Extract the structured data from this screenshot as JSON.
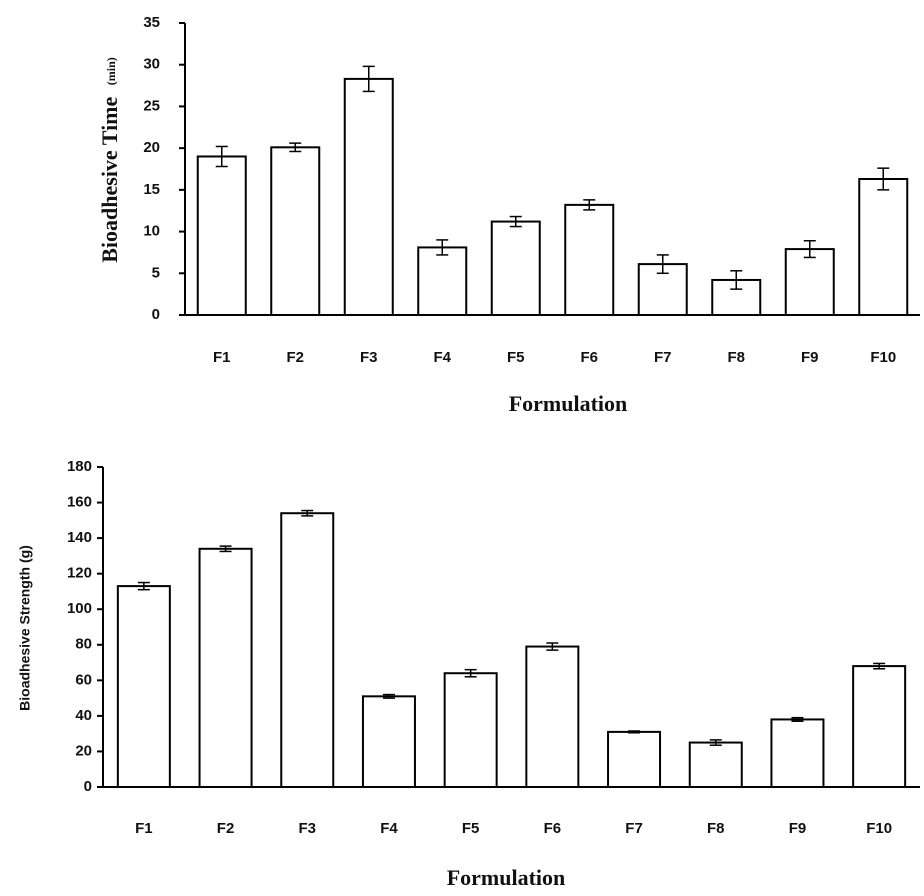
{
  "chart_data": [
    {
      "type": "bar",
      "categories": [
        "F1",
        "F2",
        "F3",
        "F4",
        "F5",
        "F6",
        "F7",
        "F8",
        "F9",
        "F10"
      ],
      "values": [
        19.0,
        20.1,
        28.3,
        8.1,
        11.2,
        13.2,
        6.1,
        4.2,
        7.9,
        16.3
      ],
      "errors": [
        1.2,
        0.5,
        1.5,
        0.9,
        0.6,
        0.6,
        1.1,
        1.1,
        1.0,
        1.3
      ],
      "ylabel": "Bioadhesive Time",
      "ylabel_unit": "(min)",
      "xlabel": "Formulation",
      "ylim": [
        0,
        35
      ],
      "yticks": [
        0,
        5,
        10,
        15,
        20,
        25,
        30,
        35
      ],
      "grid": false,
      "bar_fill": "#ffffff",
      "bar_stroke": "#000000"
    },
    {
      "type": "bar",
      "categories": [
        "F1",
        "F2",
        "F3",
        "F4",
        "F5",
        "F6",
        "F7",
        "F8",
        "F9",
        "F10"
      ],
      "values": [
        113,
        134,
        154,
        51,
        64,
        79,
        31,
        25,
        38,
        68
      ],
      "errors": [
        2,
        1.5,
        1.5,
        1,
        2,
        2,
        0.5,
        1.5,
        1,
        1.5
      ],
      "ylabel": "Bioadhesive Strength (g)",
      "xlabel": "Formulation",
      "ylim": [
        0,
        180
      ],
      "yticks": [
        0,
        20,
        40,
        60,
        80,
        100,
        120,
        140,
        160,
        180
      ],
      "grid": false,
      "bar_fill": "#ffffff",
      "bar_stroke": "#000000"
    }
  ]
}
